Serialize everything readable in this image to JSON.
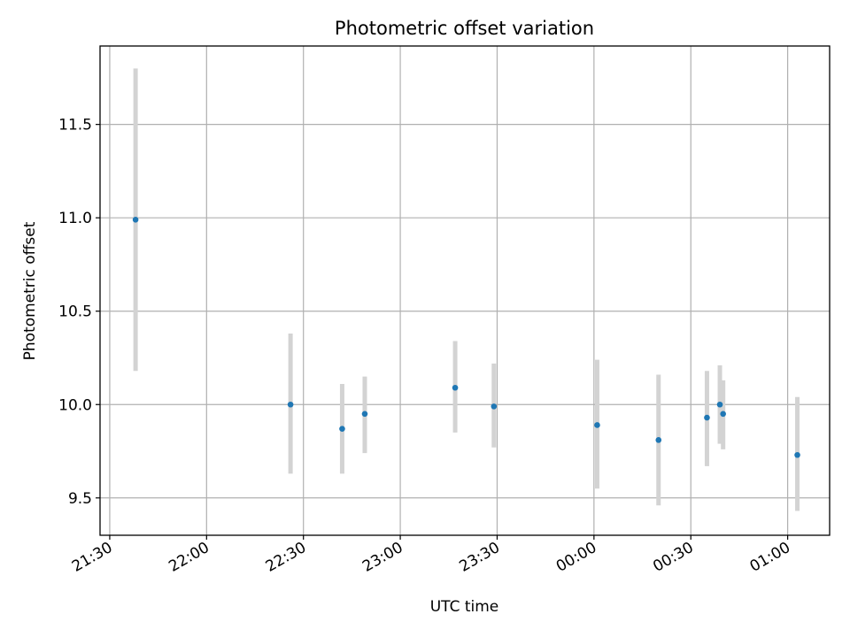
{
  "chart_data": {
    "type": "scatter",
    "title": "Photometric offset variation",
    "xlabel": "UTC time",
    "ylabel": "Photometric offset",
    "x_ticks": [
      "21:30",
      "22:00",
      "22:30",
      "23:00",
      "23:30",
      "00:00",
      "00:30",
      "01:00"
    ],
    "y_ticks": [
      "9.5",
      "10.0",
      "10.5",
      "11.0",
      "11.5"
    ],
    "xlim": [
      "21:27",
      "01:13"
    ],
    "ylim": [
      9.3,
      11.92
    ],
    "grid": true,
    "points": [
      {
        "x": "21:38",
        "y": 10.99,
        "yerr_low": 10.18,
        "yerr_high": 11.8
      },
      {
        "x": "22:26",
        "y": 10.0,
        "yerr_low": 9.63,
        "yerr_high": 10.38
      },
      {
        "x": "22:42",
        "y": 9.87,
        "yerr_low": 9.63,
        "yerr_high": 10.11
      },
      {
        "x": "22:49",
        "y": 9.95,
        "yerr_low": 9.74,
        "yerr_high": 10.15
      },
      {
        "x": "23:17",
        "y": 10.09,
        "yerr_low": 9.85,
        "yerr_high": 10.34
      },
      {
        "x": "23:29",
        "y": 9.99,
        "yerr_low": 9.77,
        "yerr_high": 10.22
      },
      {
        "x": "00:01",
        "y": 9.89,
        "yerr_low": 9.55,
        "yerr_high": 10.24
      },
      {
        "x": "00:20",
        "y": 9.81,
        "yerr_low": 9.46,
        "yerr_high": 10.16
      },
      {
        "x": "00:35",
        "y": 9.93,
        "yerr_low": 9.67,
        "yerr_high": 10.18
      },
      {
        "x": "00:39",
        "y": 10.0,
        "yerr_low": 9.79,
        "yerr_high": 10.21
      },
      {
        "x": "00:40",
        "y": 9.95,
        "yerr_low": 9.76,
        "yerr_high": 10.13
      },
      {
        "x": "01:03",
        "y": 9.73,
        "yerr_low": 9.43,
        "yerr_high": 10.04
      }
    ],
    "colors": {
      "point": "#1f77b4",
      "errbar": "#d3d3d3",
      "grid": "#b0b0b0"
    }
  }
}
